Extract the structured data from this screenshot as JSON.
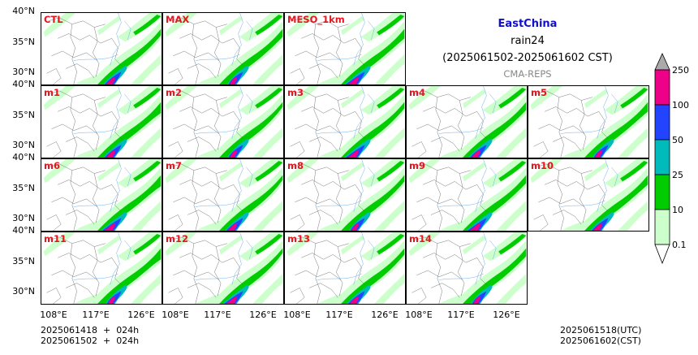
{
  "title": {
    "region": "EastChina",
    "variable": "rain24",
    "period": "(2025061502-2025061602 CST)",
    "source": "CMA-REPS"
  },
  "panels": [
    {
      "label": "CTL"
    },
    {
      "label": "MAX"
    },
    {
      "label": "MESO_1km"
    },
    {
      "label": "m1"
    },
    {
      "label": "m2"
    },
    {
      "label": "m3"
    },
    {
      "label": "m4"
    },
    {
      "label": "m5"
    },
    {
      "label": "m6"
    },
    {
      "label": "m7"
    },
    {
      "label": "m8"
    },
    {
      "label": "m9"
    },
    {
      "label": "m10"
    },
    {
      "label": "m11"
    },
    {
      "label": "m12"
    },
    {
      "label": "m13"
    },
    {
      "label": "m14"
    }
  ],
  "axes": {
    "lat_labels": [
      "40°N",
      "35°N",
      "30°N"
    ],
    "lon_labels": [
      "108°E",
      "117°E",
      "126°E"
    ]
  },
  "colorbar": {
    "levels": [
      "0.1",
      "10",
      "25",
      "50",
      "100",
      "250"
    ],
    "colors": [
      "#ccffcc",
      "#00cc00",
      "#00bbbb",
      "#2244ff",
      "#ee0088",
      "#aaaaaa"
    ]
  },
  "footer": {
    "init_utc": "2025061418  +  024h",
    "init_cst": "2025061502  +  024h",
    "valid_utc": "2025061518(UTC)",
    "valid_cst": "2025061602(CST)"
  }
}
